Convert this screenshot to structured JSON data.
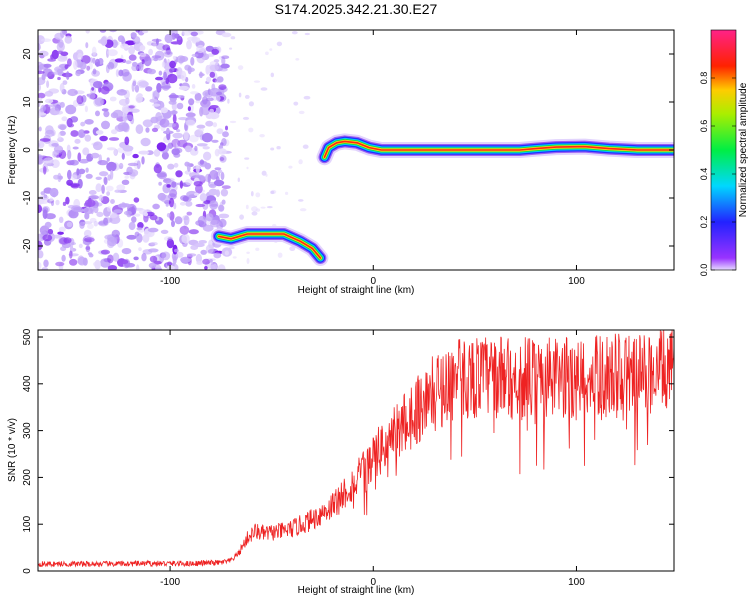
{
  "title": "S174.2025.342.21.30.E27",
  "colors": {
    "frame": "#000000",
    "snr_line": "#ee2222",
    "noise_purple": "#8a3cf0",
    "noise_light": "#d9c8fb"
  },
  "chart_data": [
    {
      "type": "heatmap",
      "name": "spectrogram",
      "xlabel": "Height of straight line (km)",
      "ylabel": "Frequency (Hz)",
      "xlim": [
        -165,
        148
      ],
      "ylim": [
        -25,
        25
      ],
      "xticks": [
        -100,
        0,
        100
      ],
      "xtick_labels": [
        "-100",
        "0",
        "100"
      ],
      "yticks": [
        20,
        10,
        0,
        -10,
        -20
      ],
      "ytick_labels": [
        "20",
        "10",
        "0",
        "-10",
        "-20"
      ],
      "noise_region": {
        "x": [
          -165,
          -72
        ],
        "y": [
          -25,
          25
        ]
      },
      "ridges": [
        {
          "points": [
            [
              -76,
              -18
            ],
            [
              -70,
              -18.5
            ],
            [
              -62,
              -17.5
            ],
            [
              -52,
              -17.5
            ],
            [
              -44,
              -17.5
            ],
            [
              -36,
              -19
            ],
            [
              -30,
              -20.5
            ],
            [
              -26,
              -22.5
            ]
          ]
        },
        {
          "points": [
            [
              -24,
              -1.5
            ],
            [
              -22,
              0.5
            ],
            [
              -18,
              1.5
            ],
            [
              -14,
              1.8
            ],
            [
              -8,
              1.5
            ],
            [
              -2,
              0.5
            ],
            [
              4,
              0
            ],
            [
              40,
              0
            ],
            [
              72,
              0
            ],
            [
              80,
              0.3
            ],
            [
              90,
              0.6
            ],
            [
              104,
              0.7
            ],
            [
              116,
              0.3
            ],
            [
              130,
              0
            ],
            [
              148,
              0
            ]
          ]
        }
      ],
      "colorbar": {
        "label": "Normalized spectral amplitude",
        "range": [
          0,
          1
        ],
        "ticks": [
          0.0,
          0.2,
          0.4,
          0.6,
          0.8
        ],
        "tick_labels": [
          "0.0",
          "0.2",
          "0.4",
          "0.6",
          "0.8"
        ],
        "colormap": "rainbow (purple-blue-cyan-green-yellow-red-magenta)"
      }
    },
    {
      "type": "line",
      "name": "snr",
      "xlabel": "Height of straight line (km)",
      "ylabel": "SNR (10 * v/v)",
      "xlim": [
        -165,
        148
      ],
      "ylim": [
        0,
        515
      ],
      "xticks": [
        -100,
        0,
        100
      ],
      "xtick_labels": [
        "-100",
        "0",
        "100"
      ],
      "yticks": [
        0,
        100,
        200,
        300,
        400,
        500
      ],
      "ytick_labels": [
        "0",
        "100",
        "200",
        "300",
        "400",
        "500"
      ],
      "series": [
        {
          "name": "SNR",
          "x": [
            -165,
            -150,
            -130,
            -110,
            -90,
            -75,
            -70,
            -66,
            -62,
            -58,
            -54,
            -50,
            -45,
            -40,
            -35,
            -30,
            -25,
            -20,
            -15,
            -10,
            -5,
            0,
            5,
            10,
            15,
            20,
            25,
            30,
            35,
            40,
            50,
            60,
            70,
            80,
            90,
            100,
            110,
            120,
            130,
            140,
            148
          ],
          "y": [
            15,
            15,
            15,
            16,
            16,
            18,
            22,
            40,
            70,
            85,
            80,
            82,
            85,
            90,
            100,
            110,
            125,
            140,
            165,
            185,
            210,
            240,
            265,
            290,
            315,
            340,
            360,
            380,
            395,
            410,
            415,
            415,
            412,
            412,
            410,
            415,
            415,
            420,
            420,
            425,
            430
          ]
        }
      ]
    }
  ]
}
